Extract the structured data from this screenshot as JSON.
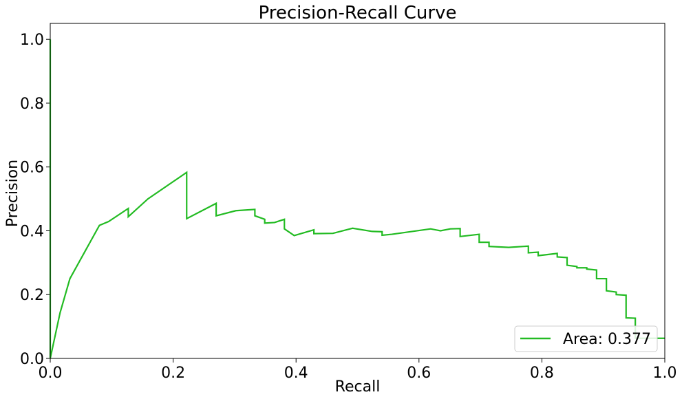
{
  "chart_data": {
    "type": "line",
    "title": "Precision-Recall Curve",
    "xlabel": "Recall",
    "ylabel": "Precision",
    "xlim": [
      0.0,
      1.0
    ],
    "ylim": [
      0.0,
      1.05
    ],
    "xticks": [
      0.0,
      0.2,
      0.4,
      0.6,
      0.8,
      1.0
    ],
    "xtick_labels": [
      "0.0",
      "0.2",
      "0.4",
      "0.6",
      "0.8",
      "1.0"
    ],
    "yticks": [
      0.0,
      0.2,
      0.4,
      0.6,
      0.8,
      1.0
    ],
    "ytick_labels": [
      "0.0",
      "0.2",
      "0.4",
      "0.6",
      "0.8",
      "1.0"
    ],
    "grid": false,
    "legend_position": "lower right",
    "series": [
      {
        "name": "Area: 0.377",
        "color": "#22bb22",
        "x": [
          0.0,
          0.0,
          0.0,
          0.016,
          0.032,
          0.08,
          0.095,
          0.127,
          0.127,
          0.159,
          0.222,
          0.222,
          0.27,
          0.27,
          0.302,
          0.333,
          0.333,
          0.349,
          0.349,
          0.365,
          0.381,
          0.381,
          0.397,
          0.429,
          0.429,
          0.46,
          0.492,
          0.524,
          0.54,
          0.54,
          0.556,
          0.619,
          0.635,
          0.651,
          0.667,
          0.667,
          0.698,
          0.698,
          0.714,
          0.714,
          0.746,
          0.778,
          0.778,
          0.794,
          0.794,
          0.825,
          0.825,
          0.841,
          0.841,
          0.857,
          0.857,
          0.873,
          0.873,
          0.889,
          0.889,
          0.905,
          0.905,
          0.921,
          0.921,
          0.937,
          0.937,
          0.952,
          0.952,
          1.0
        ],
        "y": [
          0.0,
          1.0,
          0.0,
          0.143,
          0.25,
          0.417,
          0.429,
          0.47,
          0.444,
          0.5,
          0.583,
          0.438,
          0.486,
          0.447,
          0.463,
          0.467,
          0.447,
          0.436,
          0.424,
          0.426,
          0.436,
          0.406,
          0.385,
          0.403,
          0.391,
          0.392,
          0.408,
          0.398,
          0.397,
          0.386,
          0.389,
          0.406,
          0.4,
          0.406,
          0.407,
          0.382,
          0.389,
          0.364,
          0.364,
          0.351,
          0.348,
          0.352,
          0.331,
          0.333,
          0.322,
          0.329,
          0.318,
          0.316,
          0.292,
          0.288,
          0.284,
          0.284,
          0.28,
          0.277,
          0.25,
          0.25,
          0.212,
          0.208,
          0.2,
          0.198,
          0.127,
          0.126,
          0.063,
          0.063
        ]
      }
    ]
  }
}
